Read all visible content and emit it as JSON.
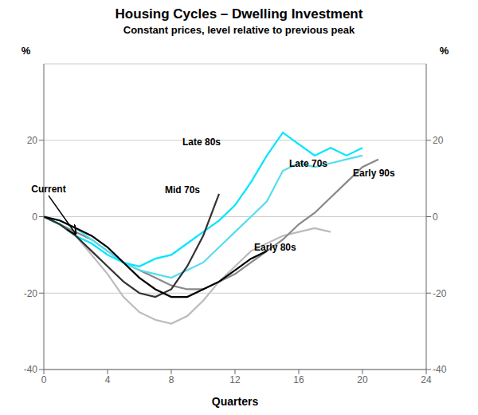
{
  "chart_data": {
    "type": "line",
    "title": "Housing Cycles – Dwelling Investment",
    "subtitle": "Constant prices, level relative to previous peak",
    "xlabel": "Quarters",
    "ylabel": "%",
    "y2label": "%",
    "xlim": [
      0,
      24
    ],
    "xticks": [
      0,
      4,
      8,
      12,
      16,
      20,
      24
    ],
    "ylim": [
      -40,
      40
    ],
    "yticks": [
      -40,
      -20,
      0,
      20
    ],
    "y2lim": [
      -40,
      40
    ],
    "y2ticks": [
      -40,
      -20,
      0,
      20
    ],
    "grid": true,
    "series": [
      {
        "name": "Early 80s",
        "color": "#bbbbbb",
        "x": [
          0,
          1,
          2,
          3,
          4,
          5,
          6,
          7,
          8,
          9,
          10,
          11,
          12,
          13,
          14,
          15,
          16,
          17,
          18
        ],
        "values": [
          0,
          -2,
          -5,
          -10,
          -15,
          -21,
          -25,
          -27,
          -28,
          -26,
          -22,
          -17,
          -13,
          -9,
          -7,
          -5,
          -4,
          -3,
          -4
        ]
      },
      {
        "name": "Early 90s",
        "color": "#888888",
        "x": [
          0,
          1,
          2,
          3,
          4,
          5,
          6,
          7,
          8,
          9,
          10,
          11,
          12,
          13,
          14,
          15,
          16,
          17,
          18,
          19,
          20,
          21
        ],
        "values": [
          0,
          -2,
          -4,
          -6,
          -9,
          -12,
          -14,
          -16,
          -18,
          -19,
          -19,
          -17,
          -15,
          -12,
          -9,
          -6,
          -2,
          1,
          5,
          9,
          13,
          15
        ]
      },
      {
        "name": "Late 70s",
        "color": "#55ddee",
        "x": [
          0,
          1,
          2,
          3,
          4,
          5,
          6,
          7,
          8,
          9,
          10,
          11,
          12,
          13,
          14,
          15,
          16,
          17,
          18,
          19,
          20
        ],
        "values": [
          0,
          -1,
          -3,
          -6,
          -9,
          -12,
          -14,
          -15,
          -16,
          -14,
          -12,
          -8,
          -4,
          0,
          4,
          12,
          14,
          13,
          14,
          15,
          16
        ]
      },
      {
        "name": "Late 80s",
        "color": "#00e5ff",
        "x": [
          0,
          1,
          2,
          3,
          4,
          5,
          6,
          7,
          8,
          9,
          10,
          11,
          12,
          13,
          14,
          15,
          16,
          17,
          18,
          19,
          20
        ],
        "values": [
          0,
          -2,
          -5,
          -7,
          -10,
          -12,
          -13,
          -11,
          -10,
          -7,
          -4,
          -1,
          3,
          9,
          16,
          22,
          19,
          16,
          18,
          16,
          18
        ]
      },
      {
        "name": "Mid 70s",
        "color": "#333333",
        "x": [
          0,
          1,
          2,
          3,
          4,
          5,
          6,
          7,
          8,
          9,
          10,
          11
        ],
        "values": [
          0,
          -2,
          -5,
          -9,
          -13,
          -17,
          -20,
          -21,
          -19,
          -13,
          -5,
          6
        ]
      },
      {
        "name": "Current",
        "color": "#000000",
        "x": [
          0,
          1,
          2,
          3,
          4,
          5,
          6,
          7,
          8,
          9,
          10,
          11,
          12,
          13,
          14
        ],
        "values": [
          0,
          -1,
          -3,
          -5,
          -8,
          -12,
          -16,
          -19,
          -21,
          -21,
          -19,
          -17,
          -14,
          -11,
          -9
        ]
      }
    ],
    "annotations": [
      {
        "text": "Current",
        "x": 0.3,
        "y": 5.5,
        "arrow_x": 2.0,
        "arrow_y": -4.5
      },
      {
        "text": "Mid 70s",
        "x": 7.4,
        "y": 7.0
      },
      {
        "text": "Late 80s",
        "x": 8.5,
        "y": 19.5
      },
      {
        "text": "Late 70s",
        "x": 15.2,
        "y": 14.0
      },
      {
        "text": "Early 80s",
        "x": 13.0,
        "y": -8.0
      },
      {
        "text": "Early 90s",
        "x": 19.2,
        "y": 11.5
      }
    ]
  }
}
